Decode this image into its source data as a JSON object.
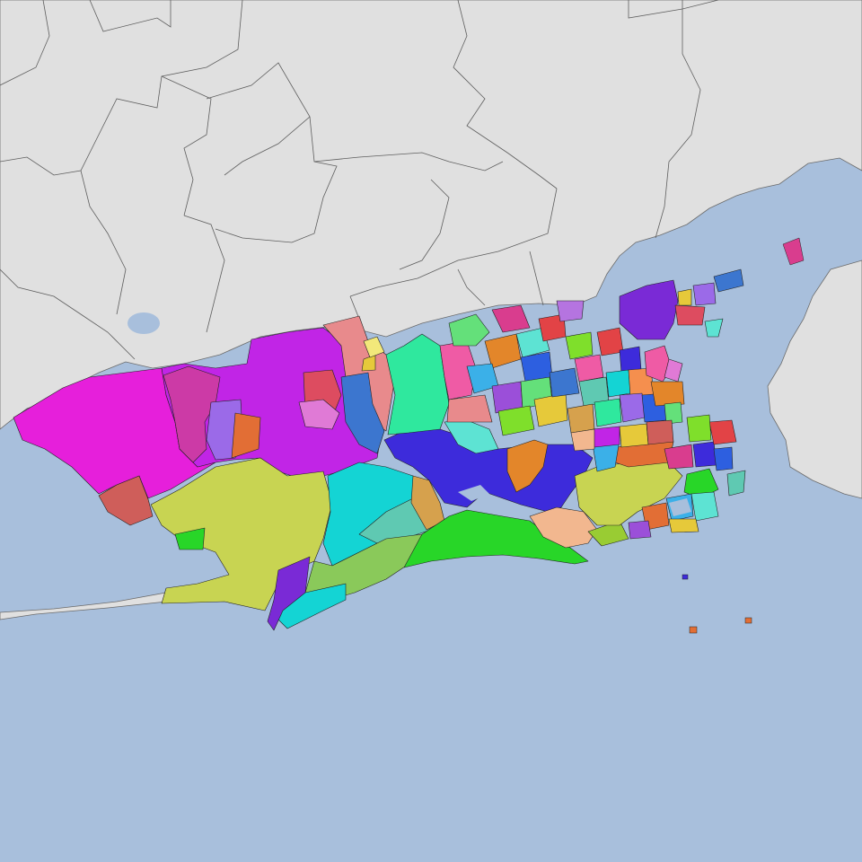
{
  "map": {
    "colors": {
      "sea": "#a8bfdc",
      "land": "#e0e0e0",
      "border": "#5e5e5e",
      "district_outline": "#222222"
    },
    "palette": [
      "#e61fdb",
      "#c125e6",
      "#cc3aa6",
      "#e88a8c",
      "#dd4c60",
      "#2fe89e",
      "#3d2bdb",
      "#c8d452",
      "#14d4d4",
      "#28d628",
      "#8ac95a",
      "#e26e35",
      "#cf5e5a",
      "#7a2ad6",
      "#f2b78f",
      "#99cc33",
      "#5fc9b2",
      "#d6a14d",
      "#e3862a",
      "#3c76cf",
      "#ef5ba5",
      "#7fdf2b",
      "#9b4fd9",
      "#3bb0e8",
      "#e24346",
      "#64e07a",
      "#b574e0",
      "#e6c93a",
      "#2d5fe0",
      "#d93d8e",
      "#5de3d3",
      "#f58f4e"
    ]
  }
}
